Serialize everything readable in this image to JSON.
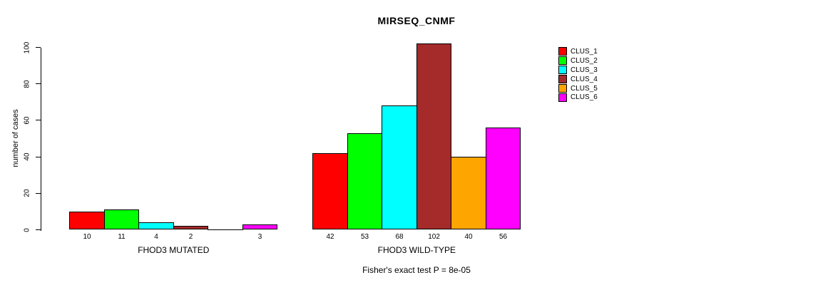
{
  "chart_data": {
    "type": "bar",
    "title": "MIRSEQ_CNMF",
    "ylabel": "number of cases",
    "ylim": [
      0,
      100
    ],
    "yticks": [
      0,
      20,
      40,
      60,
      80,
      100
    ],
    "grid": false,
    "legend_position": "right",
    "series_colors": [
      "#FF0000",
      "#00FF00",
      "#00FFFF",
      "#A52A2A",
      "#FFA500",
      "#FF00FF"
    ],
    "groups": [
      {
        "label": "FHOD3 MUTATED",
        "values": [
          10,
          11,
          4,
          2,
          0,
          3
        ],
        "bar_labels": [
          "10",
          "11",
          "4",
          "2",
          "",
          "3"
        ]
      },
      {
        "label": "FHOD3 WILD-TYPE",
        "values": [
          42,
          53,
          68,
          102,
          40,
          56
        ],
        "bar_labels": [
          "42",
          "53",
          "68",
          "102",
          "40",
          "56"
        ]
      }
    ],
    "legend": [
      {
        "label": "CLUS_1",
        "color": "#FF0000"
      },
      {
        "label": "CLUS_2",
        "color": "#00FF00"
      },
      {
        "label": "CLUS_3",
        "color": "#00FFFF"
      },
      {
        "label": "CLUS_4",
        "color": "#A52A2A"
      },
      {
        "label": "CLUS_5",
        "color": "#FFA500"
      },
      {
        "label": "CLUS_6",
        "color": "#FF00FF"
      }
    ],
    "caption": "Fisher's exact test P = 8e-05"
  }
}
